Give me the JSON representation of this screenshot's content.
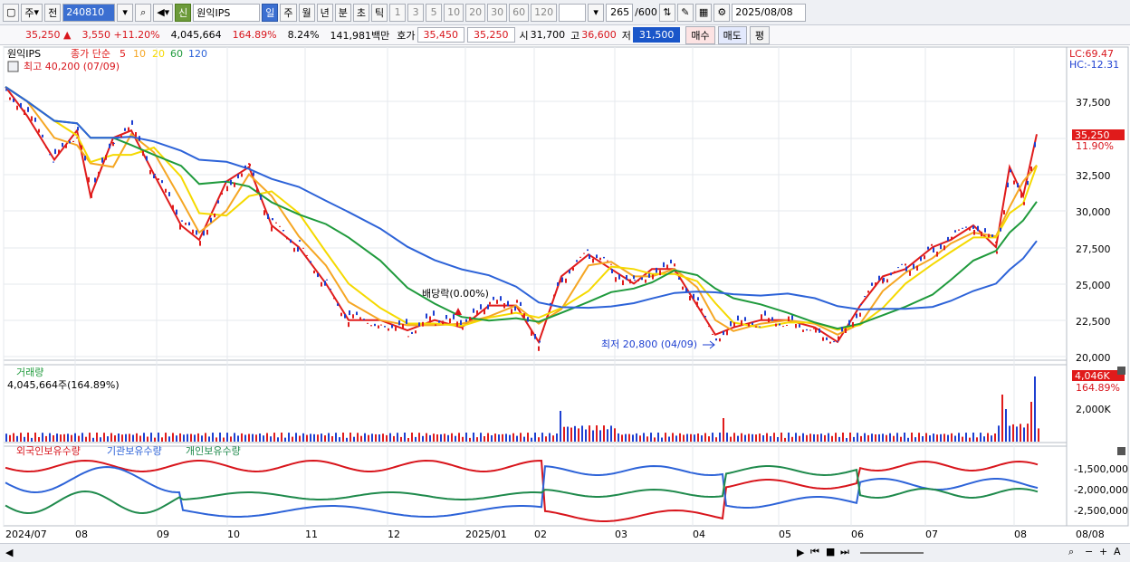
{
  "toolbar": {
    "mode": "주",
    "prev": "전",
    "code": "240810",
    "name_badge": "신",
    "name": "원익IPS",
    "periods": [
      "일",
      "주",
      "월",
      "년",
      "분",
      "초",
      "틱"
    ],
    "nums": [
      "1",
      "3",
      "5",
      "10",
      "20",
      "30",
      "60",
      "120"
    ],
    "count": "265",
    "max": "/600",
    "date": "2025/08/08"
  },
  "quote": {
    "price": "35,250",
    "arrow": "▲",
    "change": "3,550",
    "pct": "+11.20%",
    "volume": "4,045,664",
    "vol_ratio": "164.89%",
    "turnover": "8.24%",
    "amount": "141,981백만",
    "bid_label": "호가",
    "ask": "35,450",
    "bid": "35,250",
    "open_label": "시",
    "open": "31,700",
    "high_label": "고",
    "high": "36,600",
    "low_label": "저",
    "low": "31,500",
    "buy_btn": "매수",
    "sell_btn": "매도",
    "eval_btn": "평"
  },
  "price_panel": {
    "legend_name": "원익IPS",
    "legend_ma_label": "종가 단순",
    "ma_periods": [
      "5",
      "10",
      "20",
      "60",
      "120"
    ],
    "ma_colors": [
      "#e01b1b",
      "#f5a623",
      "#f5d900",
      "#1f9a3c",
      "#2d63d8"
    ],
    "high_note": "최고 40,200 (07/09)",
    "low_note": "최저 20,800 (04/09)",
    "dividend_note": "배당락(0.00%)",
    "lc": "LC:69.47",
    "hc": "HC:-12.31",
    "last_price_tag": "35,250",
    "last_pct_tag": "11.90%",
    "y_ticks": [
      "37,500",
      "35,000",
      "32,500",
      "30,000",
      "27,500",
      "25,000",
      "22,500",
      "20,000"
    ]
  },
  "volume_panel": {
    "title": "거래량",
    "value": "4,045,664주(164.89%)",
    "tag_value": "4,046K",
    "tag_pct": "164.89%",
    "y_tick": "2,000K"
  },
  "holding_panel": {
    "titles": [
      "외국인보유수량",
      "기관보유수량",
      "개인보유수량"
    ],
    "colors": [
      "#d8151c",
      "#2d63d8",
      "#1f8a4c"
    ],
    "y_ticks": [
      "-1,500,000",
      "-2,000,000",
      "-2,500,000"
    ]
  },
  "x_axis": {
    "labels": [
      "2024/07",
      "08",
      "09",
      "10",
      "11",
      "12",
      "2025/01",
      "02",
      "03",
      "04",
      "05",
      "06",
      "07",
      "08"
    ],
    "right_label": "08/08"
  }
}
